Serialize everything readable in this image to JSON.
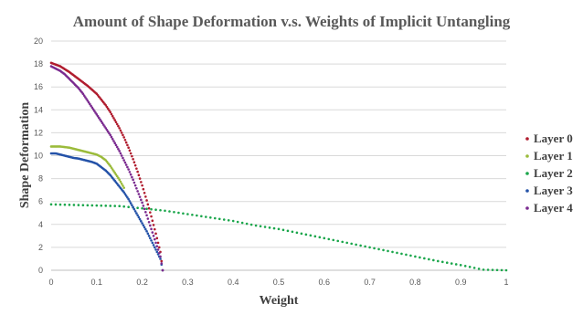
{
  "chart_data": {
    "type": "scatter",
    "title": "Amount of Shape Deformation v.s. Weights of Implicit Untangling",
    "xlabel": "Weight",
    "ylabel": "Shape Deformation",
    "xlim": [
      0,
      1
    ],
    "ylim": [
      0,
      20
    ],
    "x_ticks": [
      "0",
      "0.1",
      "0.2",
      "0.3",
      "0.4",
      "0.5",
      "0.6",
      "0.7",
      "0.8",
      "0.9",
      "1"
    ],
    "y_ticks": [
      "0",
      "2",
      "4",
      "6",
      "8",
      "10",
      "12",
      "14",
      "16",
      "18",
      "20"
    ],
    "grid": "horizontal",
    "legend_position": "right",
    "series": [
      {
        "name": "Layer 0",
        "color": "#b01c2e",
        "points": [
          [
            0.0,
            18.1
          ],
          [
            0.01,
            17.95
          ],
          [
            0.02,
            17.8
          ],
          [
            0.03,
            17.55
          ],
          [
            0.04,
            17.3
          ],
          [
            0.05,
            17.0
          ],
          [
            0.06,
            16.7
          ],
          [
            0.07,
            16.4
          ],
          [
            0.08,
            16.1
          ],
          [
            0.09,
            15.75
          ],
          [
            0.1,
            15.4
          ],
          [
            0.11,
            14.9
          ],
          [
            0.12,
            14.4
          ],
          [
            0.13,
            13.8
          ],
          [
            0.14,
            13.1
          ],
          [
            0.15,
            12.4
          ],
          [
            0.16,
            11.6
          ],
          [
            0.17,
            10.7
          ],
          [
            0.18,
            9.7
          ],
          [
            0.19,
            8.6
          ],
          [
            0.2,
            7.4
          ],
          [
            0.21,
            6.1
          ],
          [
            0.22,
            4.7
          ],
          [
            0.23,
            3.2
          ],
          [
            0.24,
            1.6
          ],
          [
            0.245,
            0.0
          ]
        ]
      },
      {
        "name": "Layer 1",
        "color": "#9bbb3b",
        "points": [
          [
            0.0,
            10.8
          ],
          [
            0.01,
            10.8
          ],
          [
            0.02,
            10.8
          ],
          [
            0.03,
            10.75
          ],
          [
            0.04,
            10.7
          ],
          [
            0.05,
            10.6
          ],
          [
            0.06,
            10.5
          ],
          [
            0.07,
            10.4
          ],
          [
            0.08,
            10.3
          ],
          [
            0.09,
            10.2
          ],
          [
            0.1,
            10.1
          ],
          [
            0.11,
            9.9
          ],
          [
            0.12,
            9.6
          ],
          [
            0.13,
            9.1
          ],
          [
            0.14,
            8.5
          ],
          [
            0.15,
            7.9
          ],
          [
            0.16,
            7.2
          ]
        ]
      },
      {
        "name": "Layer 2",
        "color": "#1aa64b",
        "points": [
          [
            0.0,
            5.75
          ],
          [
            0.05,
            5.7
          ],
          [
            0.1,
            5.65
          ],
          [
            0.15,
            5.6
          ],
          [
            0.2,
            5.4
          ],
          [
            0.25,
            5.2
          ],
          [
            0.3,
            4.9
          ],
          [
            0.35,
            4.6
          ],
          [
            0.4,
            4.3
          ],
          [
            0.45,
            3.9
          ],
          [
            0.5,
            3.6
          ],
          [
            0.55,
            3.2
          ],
          [
            0.6,
            2.8
          ],
          [
            0.65,
            2.4
          ],
          [
            0.7,
            2.0
          ],
          [
            0.75,
            1.6
          ],
          [
            0.8,
            1.2
          ],
          [
            0.85,
            0.8
          ],
          [
            0.9,
            0.45
          ],
          [
            0.95,
            0.05
          ],
          [
            1.0,
            0.0
          ]
        ]
      },
      {
        "name": "Layer 3",
        "color": "#2452a8",
        "points": [
          [
            0.0,
            10.2
          ],
          [
            0.01,
            10.2
          ],
          [
            0.02,
            10.1
          ],
          [
            0.03,
            10.0
          ],
          [
            0.04,
            9.9
          ],
          [
            0.05,
            9.8
          ],
          [
            0.06,
            9.75
          ],
          [
            0.07,
            9.65
          ],
          [
            0.08,
            9.55
          ],
          [
            0.09,
            9.45
          ],
          [
            0.1,
            9.3
          ],
          [
            0.11,
            9.0
          ],
          [
            0.12,
            8.7
          ],
          [
            0.13,
            8.3
          ],
          [
            0.14,
            7.8
          ],
          [
            0.15,
            7.3
          ],
          [
            0.16,
            6.8
          ],
          [
            0.17,
            6.2
          ],
          [
            0.18,
            5.5
          ],
          [
            0.19,
            4.8
          ],
          [
            0.2,
            4.1
          ],
          [
            0.21,
            3.4
          ],
          [
            0.22,
            2.6
          ],
          [
            0.23,
            1.8
          ],
          [
            0.24,
            1.0
          ],
          [
            0.245,
            0.0
          ]
        ]
      },
      {
        "name": "Layer 4",
        "color": "#7a2a8f",
        "points": [
          [
            0.0,
            17.8
          ],
          [
            0.01,
            17.6
          ],
          [
            0.02,
            17.4
          ],
          [
            0.03,
            17.1
          ],
          [
            0.04,
            16.7
          ],
          [
            0.05,
            16.3
          ],
          [
            0.06,
            15.9
          ],
          [
            0.07,
            15.4
          ],
          [
            0.08,
            14.8
          ],
          [
            0.09,
            14.2
          ],
          [
            0.1,
            13.6
          ],
          [
            0.11,
            13.0
          ],
          [
            0.12,
            12.4
          ],
          [
            0.13,
            11.8
          ],
          [
            0.14,
            11.1
          ],
          [
            0.15,
            10.4
          ],
          [
            0.16,
            9.6
          ],
          [
            0.17,
            8.8
          ],
          [
            0.18,
            7.9
          ],
          [
            0.19,
            6.9
          ],
          [
            0.2,
            5.9
          ],
          [
            0.21,
            4.8
          ],
          [
            0.22,
            3.6
          ],
          [
            0.23,
            2.4
          ],
          [
            0.24,
            1.2
          ],
          [
            0.245,
            0.0
          ]
        ]
      }
    ]
  }
}
